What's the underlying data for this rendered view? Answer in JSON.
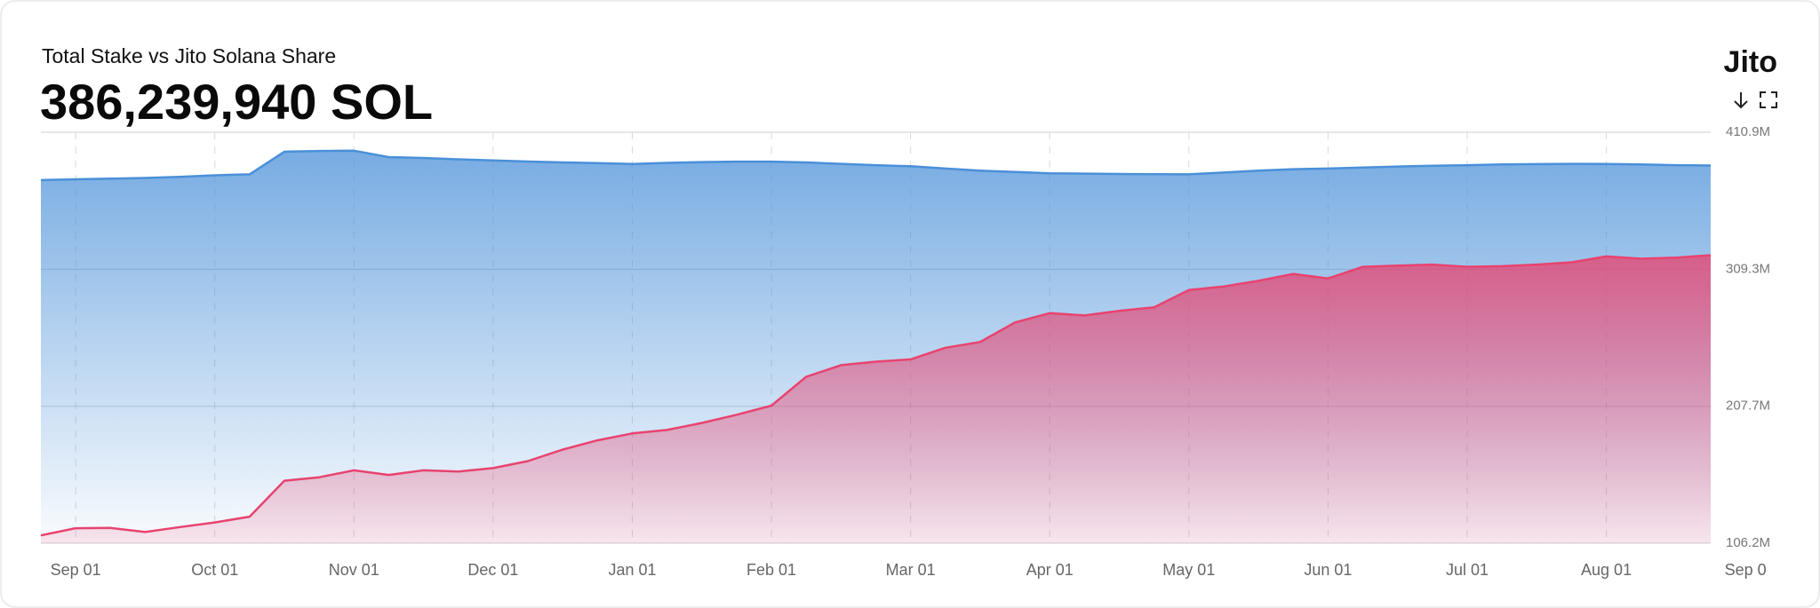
{
  "chart_data": {
    "type": "area",
    "title": "Total Stake vs Jito Solana Share",
    "headline": "386,239,940 SOL",
    "logo": "Jito",
    "categories": [
      null,
      "Sep 01",
      null,
      null,
      null,
      "Oct 01",
      null,
      null,
      null,
      "Nov 01",
      null,
      null,
      null,
      "Dec 01",
      null,
      null,
      null,
      "Jan 01",
      null,
      null,
      null,
      "Feb 01",
      null,
      null,
      null,
      "Mar 01",
      null,
      null,
      null,
      "Apr 01",
      null,
      null,
      null,
      "May 01",
      null,
      null,
      null,
      "Jun 01",
      null,
      null,
      null,
      "Jul 01",
      null,
      null,
      null,
      "Aug 01",
      null,
      null,
      null,
      "Sep 0"
    ],
    "series": [
      {
        "color": "#4a90d9",
        "values": [
          375.4,
          376.0,
          376.5,
          377.0,
          377.8,
          379.0,
          379.7,
          396.5,
          397.0,
          397.2,
          392.5,
          391.8,
          390.8,
          390.0,
          389.2,
          388.5,
          388.0,
          387.4,
          388.2,
          388.8,
          389.1,
          389.1,
          388.5,
          387.5,
          386.5,
          385.7,
          384.0,
          382.5,
          381.5,
          380.5,
          380.2,
          380.0,
          379.8,
          379.7,
          381.0,
          382.5,
          383.5,
          384.0,
          384.8,
          385.5,
          386.0,
          386.5,
          387.0,
          387.3,
          387.5,
          387.4,
          387.0,
          386.5,
          386.2,
          null
        ]
      },
      {
        "color": "#e8436f",
        "values": [
          112.0,
          117.3,
          117.5,
          114.5,
          118.2,
          121.6,
          125.9,
          152.5,
          155.1,
          160.2,
          156.8,
          160.2,
          159.4,
          161.9,
          167.1,
          175.6,
          182.5,
          187.6,
          190.2,
          195.4,
          201.4,
          208.2,
          229.6,
          238.2,
          240.8,
          242.5,
          251.1,
          255.4,
          269.9,
          276.8,
          275.1,
          278.5,
          281.1,
          293.9,
          296.5,
          300.8,
          305.9,
          302.5,
          311.1,
          312.0,
          312.8,
          311.1,
          311.6,
          312.8,
          314.5,
          318.8,
          317.1,
          318.0,
          319.7,
          null
        ]
      }
    ],
    "ylim": [
      106.2,
      410.9
    ],
    "yticks": [
      {
        "value": 106.2,
        "label": "106.2M"
      },
      {
        "value": 207.7,
        "label": "207.7M"
      },
      {
        "value": 309.3,
        "label": "309.3M"
      },
      {
        "value": 410.9,
        "label": "410.9M"
      }
    ],
    "grid": true
  }
}
